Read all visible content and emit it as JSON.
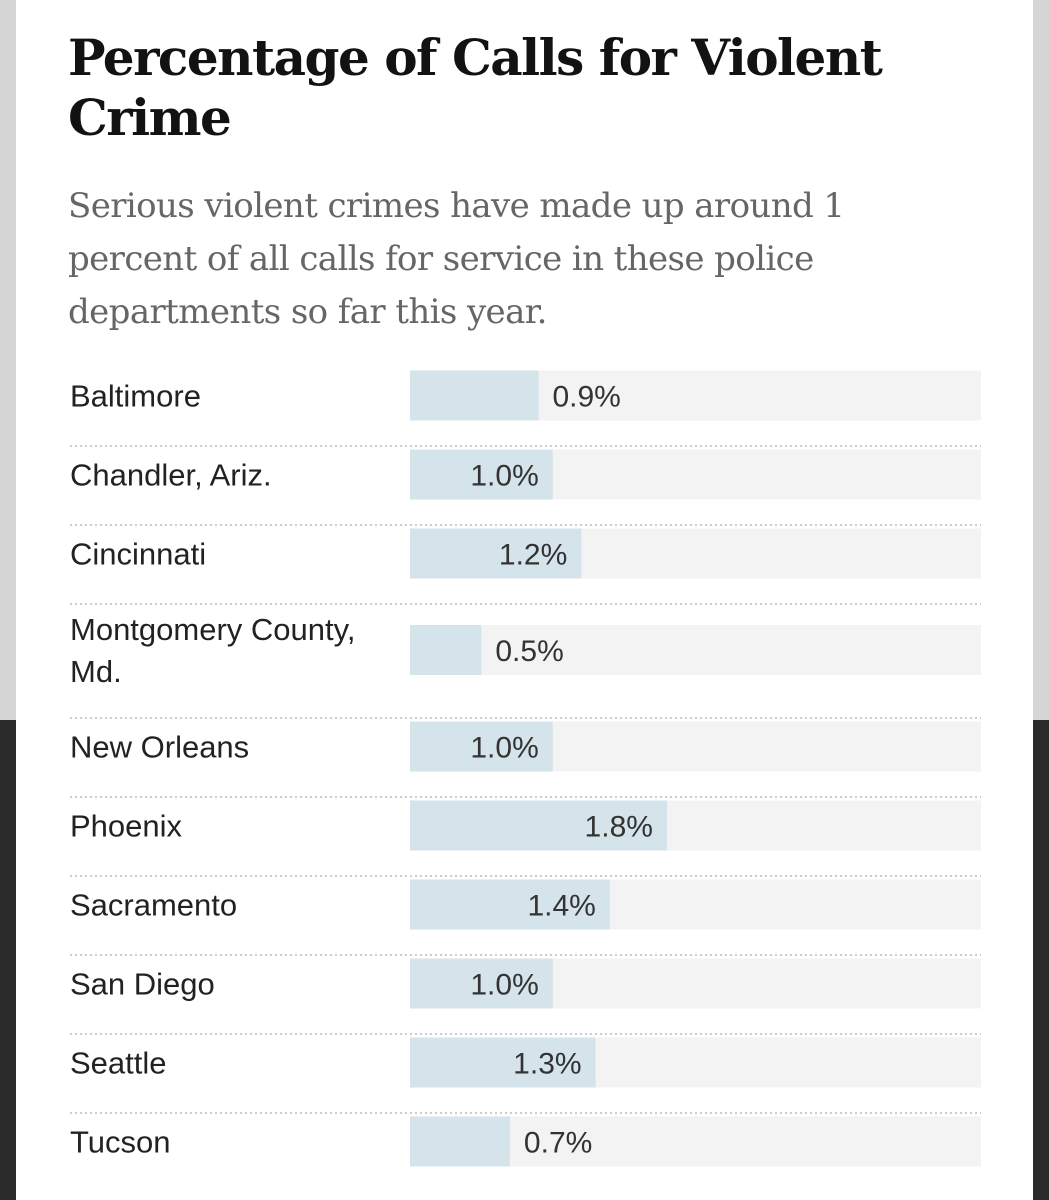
{
  "header": {
    "title": "Percentage of Calls for Violent Crime",
    "subtitle": "Serious violent crimes have made up around 1 percent of all calls for service in these police departments so far this year."
  },
  "colors": {
    "bar": "#d5e3ea",
    "track": "#f3f3f3",
    "divider": "#cccccc"
  },
  "chart_data": {
    "type": "bar",
    "orientation": "horizontal",
    "title": "Percentage of Calls for Violent Crime",
    "subtitle": "Serious violent crimes have made up around 1 percent of all calls for service in these police departments so far this year.",
    "categories": [
      "Baltimore",
      "Chandler, Ariz.",
      "Cincinnati",
      "Montgomery County, Md.",
      "New Orleans",
      "Phoenix",
      "Sacramento",
      "San Diego",
      "Seattle",
      "Tucson"
    ],
    "category_lines": [
      [
        "Baltimore"
      ],
      [
        "Chandler, Ariz."
      ],
      [
        "Cincinnati"
      ],
      [
        "Montgomery County,",
        "Md."
      ],
      [
        "New Orleans"
      ],
      [
        "Phoenix"
      ],
      [
        "Sacramento"
      ],
      [
        "San Diego"
      ],
      [
        "Seattle"
      ],
      [
        "Tucson"
      ]
    ],
    "values": [
      0.9,
      1.0,
      1.2,
      0.5,
      1.0,
      1.8,
      1.4,
      1.0,
      1.3,
      0.7
    ],
    "value_labels": [
      "0.9%",
      "1.0%",
      "1.2%",
      "0.5%",
      "1.0%",
      "1.8%",
      "1.4%",
      "1.0%",
      "1.3%",
      "0.7%"
    ],
    "xlim": [
      0,
      4.0
    ],
    "grid": false,
    "legend": "none"
  }
}
